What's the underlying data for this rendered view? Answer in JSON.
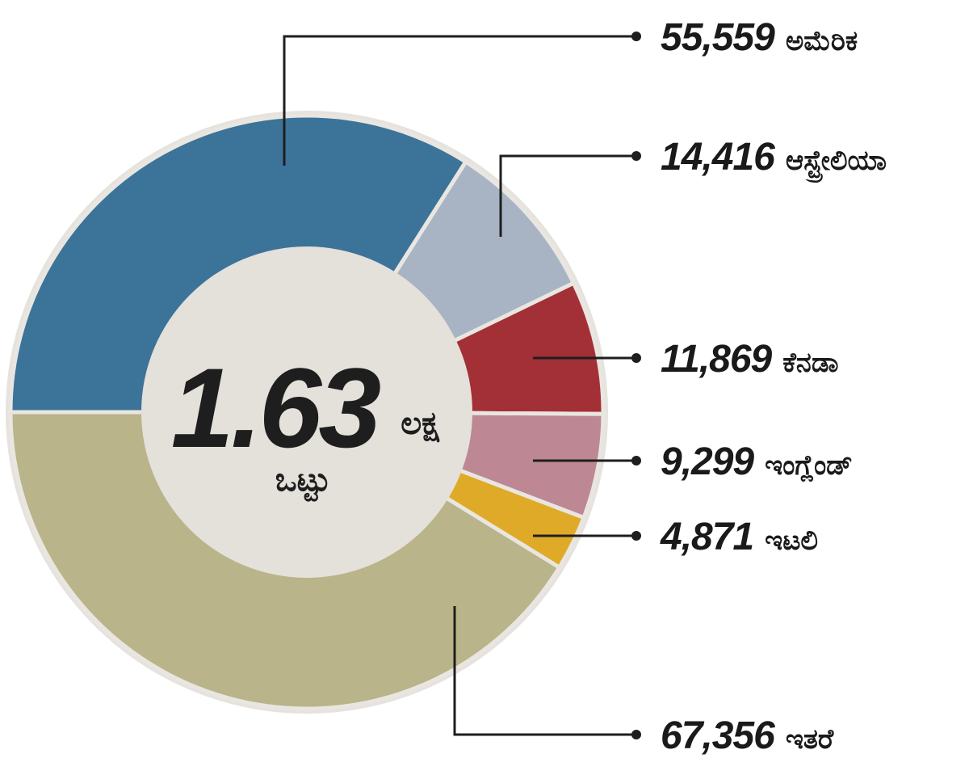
{
  "chart_data": {
    "type": "pie",
    "variant": "donut",
    "total_label": "1.63",
    "total_unit": "ಲಕ್ಷ",
    "total_caption": "ಒಟ್ಟು",
    "slices": [
      {
        "value": 55559,
        "value_label": "55,559",
        "name": "ಅಮೆರಿಕ",
        "color": "#3c7399"
      },
      {
        "value": 14416,
        "value_label": "14,416",
        "name": "ಆಸ್ಟ್ರೇಲಿಯಾ",
        "color": "#a8b4c3"
      },
      {
        "value": 11869,
        "value_label": "11,869",
        "name": "ಕೆನಡಾ",
        "color": "#a33036"
      },
      {
        "value": 9299,
        "value_label": "9,299",
        "name": "ಇಂಗ್ಲೆಂಡ್",
        "color": "#bd8893"
      },
      {
        "value": 4871,
        "value_label": "4,871",
        "name": "ಇಟಲಿ",
        "color": "#dfaa27"
      },
      {
        "value": 67356,
        "value_label": "67,356",
        "name": "ಇತರೆ",
        "color": "#b9b489"
      }
    ],
    "start": "9 o'clock",
    "direction": "clockwise",
    "center_fill": "#e4e0da",
    "legend": "none",
    "labels": "outside, right"
  }
}
